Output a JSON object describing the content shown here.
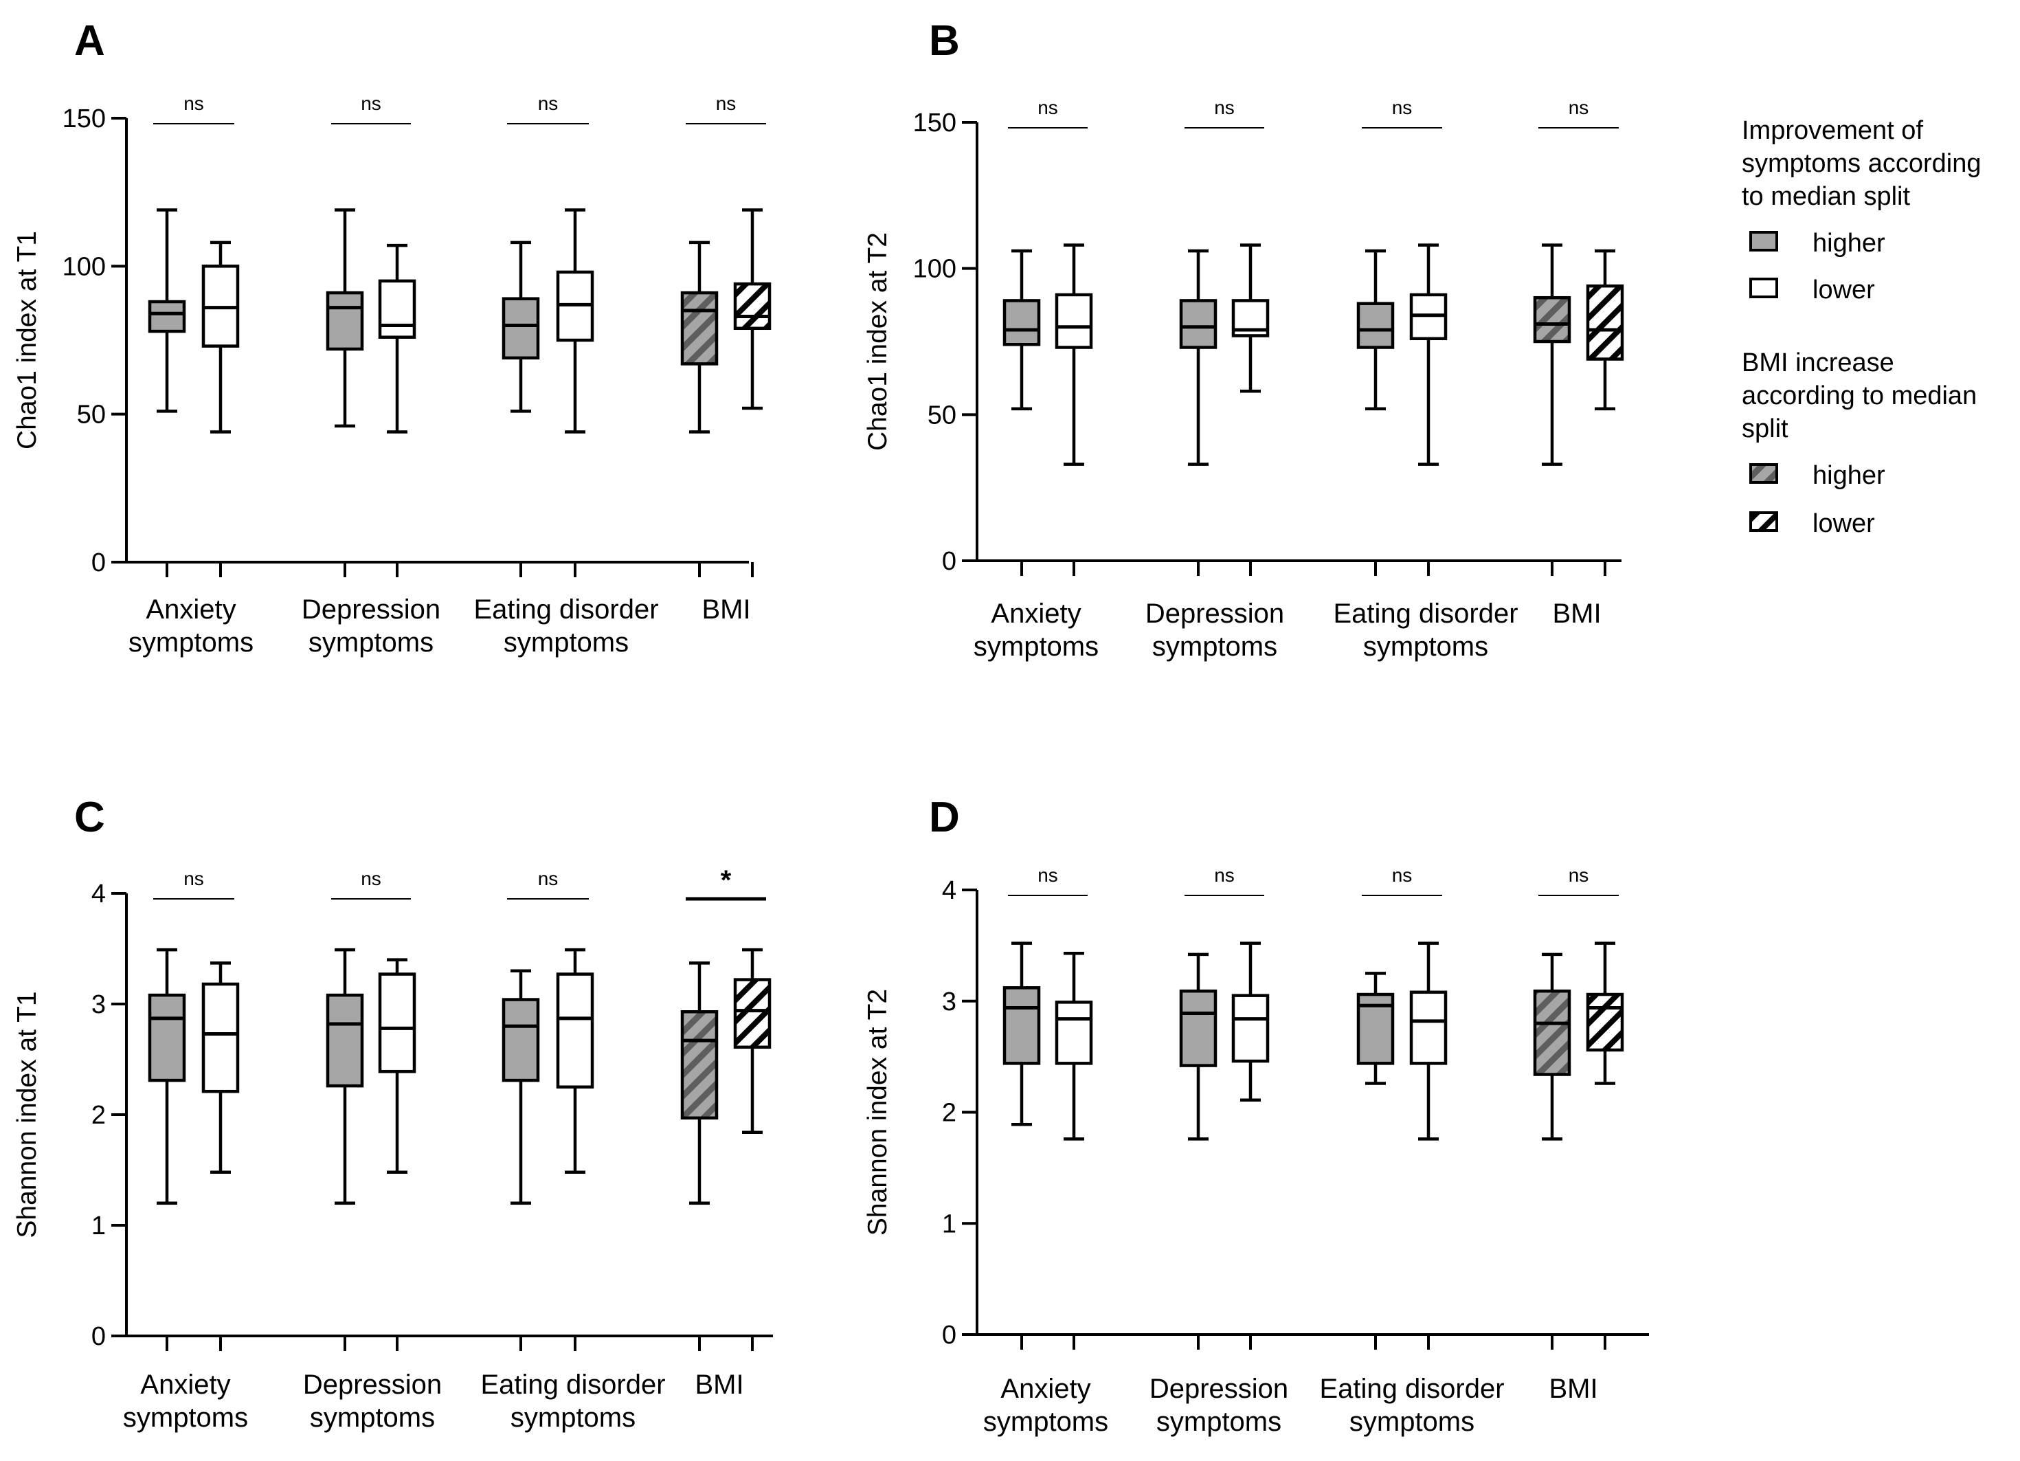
{
  "colors": {
    "higher_fill": "#a6a6a6",
    "lower_fill": "#ffffff",
    "stroke": "#000000",
    "hatch_dark": "#6e6e6e"
  },
  "legend": {
    "group1_title": [
      "Improvement of",
      "symptoms according",
      "to median split"
    ],
    "group1_items": [
      {
        "label": "higher",
        "pattern": "solid-gray"
      },
      {
        "label": "lower",
        "pattern": "solid-white"
      }
    ],
    "group2_title": [
      "BMI increase",
      "according to median",
      "split"
    ],
    "group2_items": [
      {
        "label": "higher",
        "pattern": "hatch-gray"
      },
      {
        "label": "lower",
        "pattern": "hatch-white"
      }
    ]
  },
  "chart_data": [
    {
      "panel": "A",
      "type": "box",
      "ylabel": "Chao1 index at T1",
      "ylim": [
        0,
        150
      ],
      "yticks": [
        0,
        50,
        100,
        150
      ],
      "categories": [
        [
          "Anxiety",
          "symptoms"
        ],
        [
          "Depression",
          "symptoms"
        ],
        [
          "Eating disorder",
          "symptoms"
        ],
        [
          "BMI"
        ]
      ],
      "significance": [
        "ns",
        "ns",
        "ns",
        "ns"
      ],
      "groups": [
        {
          "higher": {
            "min": 51,
            "q1": 78,
            "median": 84,
            "q3": 88,
            "max": 119
          },
          "lower": {
            "min": 44,
            "q1": 73,
            "median": 86,
            "q3": 100,
            "max": 108
          }
        },
        {
          "higher": {
            "min": 46,
            "q1": 72,
            "median": 86,
            "q3": 91,
            "max": 119
          },
          "lower": {
            "min": 44,
            "q1": 76,
            "median": 80,
            "q3": 95,
            "max": 107
          }
        },
        {
          "higher": {
            "min": 51,
            "q1": 69,
            "median": 80,
            "q3": 89,
            "max": 108
          },
          "lower": {
            "min": 44,
            "q1": 75,
            "median": 87,
            "q3": 98,
            "max": 119
          }
        },
        {
          "higher": {
            "min": 44,
            "q1": 67,
            "median": 85,
            "q3": 91,
            "max": 108
          },
          "lower": {
            "min": 52,
            "q1": 79,
            "median": 83,
            "q3": 94,
            "max": 119
          }
        }
      ]
    },
    {
      "panel": "B",
      "type": "box",
      "ylabel": "Chao1 index at T2",
      "ylim": [
        0,
        150
      ],
      "yticks": [
        0,
        50,
        100,
        150
      ],
      "categories": [
        [
          "Anxiety",
          "symptoms"
        ],
        [
          "Depression",
          "symptoms"
        ],
        [
          "Eating disorder",
          "symptoms"
        ],
        [
          "BMI"
        ]
      ],
      "significance": [
        "ns",
        "ns",
        "ns",
        "ns"
      ],
      "groups": [
        {
          "higher": {
            "min": 52,
            "q1": 74,
            "median": 79,
            "q3": 89,
            "max": 106
          },
          "lower": {
            "min": 33,
            "q1": 73,
            "median": 80,
            "q3": 91,
            "max": 108
          }
        },
        {
          "higher": {
            "min": 33,
            "q1": 73,
            "median": 80,
            "q3": 89,
            "max": 106
          },
          "lower": {
            "min": 58,
            "q1": 77,
            "median": 79,
            "q3": 89,
            "max": 108
          }
        },
        {
          "higher": {
            "min": 52,
            "q1": 73,
            "median": 79,
            "q3": 88,
            "max": 106
          },
          "lower": {
            "min": 33,
            "q1": 76,
            "median": 84,
            "q3": 91,
            "max": 108
          }
        },
        {
          "higher": {
            "min": 33,
            "q1": 75,
            "median": 81,
            "q3": 90,
            "max": 108
          },
          "lower": {
            "min": 52,
            "q1": 69,
            "median": 79,
            "q3": 94,
            "max": 106
          }
        }
      ]
    },
    {
      "panel": "C",
      "type": "box",
      "ylabel": "Shannon index at T1",
      "ylim": [
        0,
        4
      ],
      "yticks": [
        0,
        1,
        2,
        3,
        4
      ],
      "categories": [
        [
          "Anxiety",
          "symptoms"
        ],
        [
          "Depression",
          "symptoms"
        ],
        [
          "Eating disorder",
          "symptoms"
        ],
        [
          "BMI"
        ]
      ],
      "significance": [
        "ns",
        "ns",
        "ns",
        "*"
      ],
      "groups": [
        {
          "higher": {
            "min": 1.2,
            "q1": 2.31,
            "median": 2.87,
            "q3": 3.08,
            "max": 3.49
          },
          "lower": {
            "min": 1.48,
            "q1": 2.21,
            "median": 2.73,
            "q3": 3.18,
            "max": 3.37
          }
        },
        {
          "higher": {
            "min": 1.2,
            "q1": 2.26,
            "median": 2.82,
            "q3": 3.08,
            "max": 3.49
          },
          "lower": {
            "min": 1.48,
            "q1": 2.39,
            "median": 2.78,
            "q3": 3.27,
            "max": 3.4
          }
        },
        {
          "higher": {
            "min": 1.2,
            "q1": 2.31,
            "median": 2.8,
            "q3": 3.04,
            "max": 3.3
          },
          "lower": {
            "min": 1.48,
            "q1": 2.25,
            "median": 2.87,
            "q3": 3.27,
            "max": 3.49
          }
        },
        {
          "higher": {
            "min": 1.2,
            "q1": 1.97,
            "median": 2.67,
            "q3": 2.93,
            "max": 3.37
          },
          "lower": {
            "min": 1.84,
            "q1": 2.61,
            "median": 2.94,
            "q3": 3.22,
            "max": 3.49
          }
        }
      ]
    },
    {
      "panel": "D",
      "type": "box",
      "ylabel": "Shannon index at T2",
      "ylim": [
        0,
        4
      ],
      "yticks": [
        0,
        1,
        2,
        3,
        4
      ],
      "categories": [
        [
          "Anxiety",
          "symptoms"
        ],
        [
          "Depression",
          "symptoms"
        ],
        [
          "Eating disorder",
          "symptoms"
        ],
        [
          "BMI"
        ]
      ],
      "significance": [
        "ns",
        "ns",
        "ns",
        "ns"
      ],
      "groups": [
        {
          "higher": {
            "min": 1.89,
            "q1": 2.44,
            "median": 2.94,
            "q3": 3.12,
            "max": 3.52
          },
          "lower": {
            "min": 1.76,
            "q1": 2.44,
            "median": 2.84,
            "q3": 2.99,
            "max": 3.43
          }
        },
        {
          "higher": {
            "min": 1.76,
            "q1": 2.42,
            "median": 2.89,
            "q3": 3.09,
            "max": 3.42
          },
          "lower": {
            "min": 2.11,
            "q1": 2.46,
            "median": 2.84,
            "q3": 3.05,
            "max": 3.52
          }
        },
        {
          "higher": {
            "min": 2.26,
            "q1": 2.44,
            "median": 2.96,
            "q3": 3.06,
            "max": 3.25
          },
          "lower": {
            "min": 1.76,
            "q1": 2.44,
            "median": 2.82,
            "q3": 3.08,
            "max": 3.52
          }
        },
        {
          "higher": {
            "min": 1.76,
            "q1": 2.34,
            "median": 2.8,
            "q3": 3.09,
            "max": 3.42
          },
          "lower": {
            "min": 2.26,
            "q1": 2.56,
            "median": 2.94,
            "q3": 3.06,
            "max": 3.52
          }
        }
      ]
    }
  ]
}
